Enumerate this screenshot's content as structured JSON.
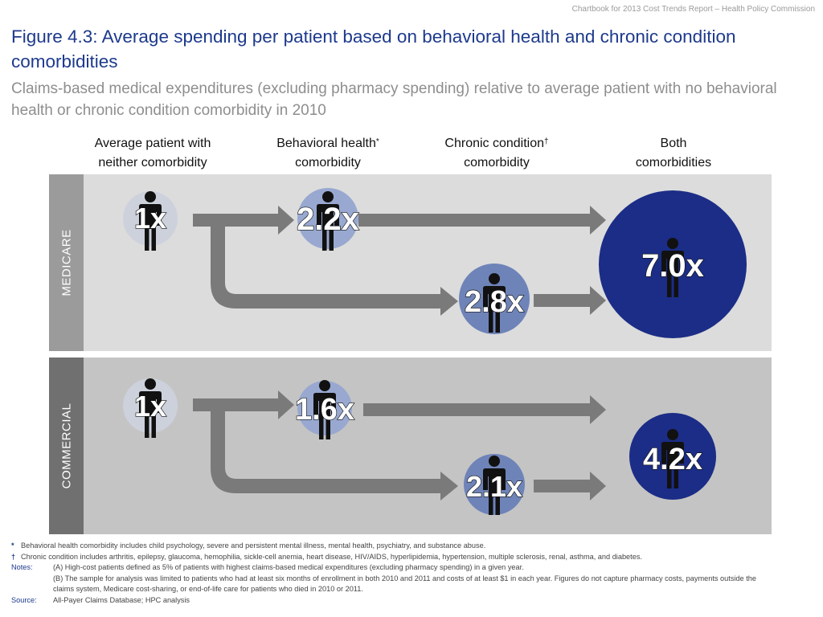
{
  "header_note": "Chartbook for 2013 Cost Trends Report – Health Policy Commission",
  "title": "Figure 4.3: Average spending per patient based on behavioral health and chronic condition comorbidities",
  "subtitle": "Claims-based medical expenditures (excluding pharmacy spending) relative to average patient with no behavioral health or chronic condition comorbidity in 2010",
  "columns": {
    "neither": {
      "line1": "Average patient with",
      "line2": "neither comorbidity"
    },
    "behavioral": {
      "line1": "Behavioral health",
      "mark": "*",
      "line2": "comorbidity"
    },
    "chronic": {
      "line1": "Chronic condition",
      "mark": "†",
      "line2": "comorbidity"
    },
    "both": {
      "line1": "Both",
      "line2": "comorbidities"
    }
  },
  "panels": {
    "medicare": {
      "label": "MEDICARE",
      "neither": "1x",
      "behavioral": "2.2x",
      "chronic": "2.8x",
      "both": "7.0x"
    },
    "commercial": {
      "label": "COMMERCIAL",
      "neither": "1x",
      "behavioral": "1.6x",
      "chronic": "2.1x",
      "both": "4.2x"
    }
  },
  "colors": {
    "title": "#1d3a8c",
    "neither_circle": "#cdd1dc",
    "behavioral_circle": "#98a8d0",
    "chronic_circle": "#6e83b8",
    "both_circle": "#1b2d86",
    "arrow": "#7a7a7a",
    "medicare_bg": "#dcdcdc",
    "commercial_bg": "#c4c4c4",
    "medicare_side": "#9b9b9b",
    "commercial_side": "#707070"
  },
  "footnotes": {
    "behavioral_mark": "*",
    "behavioral_text": "Behavioral health comorbidity includes child psychology, severe and persistent mental illness, mental health, psychiatry, and substance abuse.",
    "chronic_mark": "†",
    "chronic_text": "Chronic condition includes arthritis, epilepsy, glaucoma, hemophilia, sickle-cell anemia, heart disease, HIV/AIDS, hyperlipidemia, hypertension, multiple sclerosis, renal, asthma, and diabetes.",
    "notes_label": "Notes:",
    "note_a": "(A) High-cost patients defined as 5% of patients with highest claims-based medical expenditures (excluding pharmacy spending) in a given year.",
    "note_b": "(B) The sample for analysis was limited to patients who had at least six months of enrollment in both 2010 and 2011 and costs of at least $1 in each year. Figures do not capture pharmacy costs, payments outside the claims system, Medicare cost-sharing, or end-of-life care for patients who died in 2010 or 2011.",
    "source_label": "Source:",
    "source_text": "All-Payer Claims Database; HPC analysis"
  }
}
